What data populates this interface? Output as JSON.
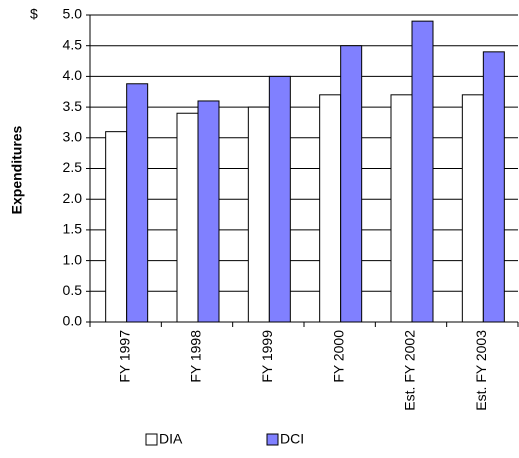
{
  "chart_data": {
    "type": "bar",
    "y_label": "Expenditures",
    "y_unit": "$",
    "categories": [
      "FY 1997",
      "FY 1998",
      "FY 1999",
      "FY 2000",
      "Est. FY 2002",
      "Est. FY 2003"
    ],
    "series": [
      {
        "name": "DIA",
        "color": "#ffffff",
        "values": [
          3.1,
          3.4,
          3.5,
          3.7,
          3.7,
          3.7
        ]
      },
      {
        "name": "DCI",
        "color": "#8080ff",
        "values": [
          3.88,
          3.6,
          4.0,
          4.5,
          4.9,
          4.4
        ]
      }
    ],
    "ylim": [
      0,
      5
    ],
    "yticks": [
      {
        "value": 0,
        "label": "0.0"
      },
      {
        "value": 0.5,
        "label": "0.5"
      },
      {
        "value": 1,
        "label": "1.0"
      },
      {
        "value": 1.5,
        "label": "1.5"
      },
      {
        "value": 2,
        "label": "2.0"
      },
      {
        "value": 2.5,
        "label": "2.5"
      },
      {
        "value": 3,
        "label": "3.0"
      },
      {
        "value": 3.5,
        "label": "3.5"
      },
      {
        "value": 4,
        "label": "4.0"
      },
      {
        "value": 4.5,
        "label": "4.5"
      },
      {
        "value": 5,
        "label": "5.0"
      }
    ],
    "grid": true
  }
}
